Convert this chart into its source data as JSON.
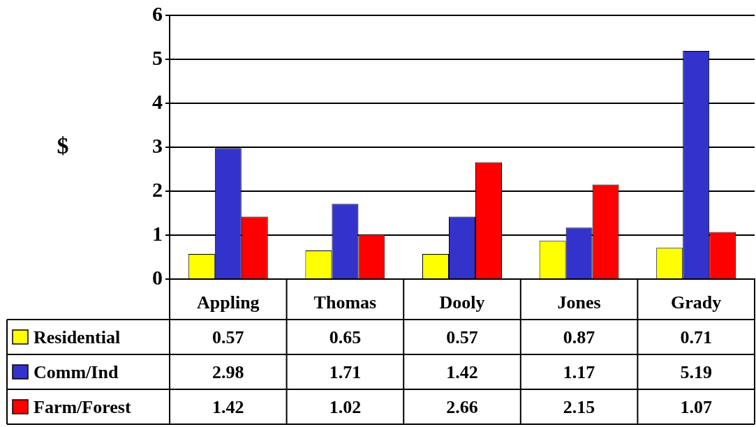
{
  "chart_data": {
    "type": "bar",
    "ylabel": "$",
    "categories": [
      "Appling",
      "Thomas",
      "Dooly",
      "Jones",
      "Grady"
    ],
    "series": [
      {
        "name": "Residential",
        "color": "#ffff00",
        "values": [
          0.57,
          0.65,
          0.57,
          0.87,
          0.71
        ]
      },
      {
        "name": "Comm/Ind",
        "color": "#3333cc",
        "values": [
          2.98,
          1.71,
          1.42,
          1.17,
          5.19
        ]
      },
      {
        "name": "Farm/Forest",
        "color": "#ff0000",
        "values": [
          1.42,
          1.02,
          2.66,
          2.15,
          1.07
        ]
      }
    ],
    "ylim": [
      0,
      6
    ],
    "yticks": [
      0,
      1,
      2,
      3,
      4,
      5,
      6
    ],
    "grid": "y",
    "data_labels": true,
    "legend": "bottom"
  }
}
